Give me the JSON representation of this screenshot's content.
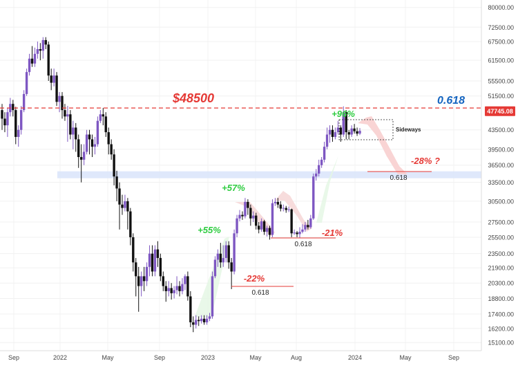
{
  "chart_data": {
    "type": "candlestick",
    "colors": {
      "up": "#7e57c2",
      "down": "#111111",
      "resistance_line": "#e53935",
      "support_band": "#dbe6fb",
      "gain_text": "#2ecc40",
      "loss_text": "#e53935",
      "fib_text": "#1565c0",
      "price_tag": "#e53935"
    },
    "y_axis": {
      "scale": "log",
      "ticks": [
        "80000.00",
        "72500.00",
        "67500.00",
        "61500.00",
        "55500.00",
        "51500.00",
        "47745.08",
        "43500.00",
        "39500.00",
        "36500.00",
        "33500.00",
        "30500.00",
        "27500.00",
        "25500.00",
        "23500.00",
        "21900.00",
        "20300.00",
        "18800.00",
        "17400.00",
        "16200.00",
        "15100.00"
      ],
      "range": [
        14500,
        83000
      ]
    },
    "x_axis": {
      "ticks": [
        "Sep",
        "2022",
        "May",
        "Sep",
        "2023",
        "May",
        "Aug",
        "2024",
        "May",
        "Sep"
      ]
    },
    "current_price": "47745.08",
    "resistance": {
      "label": "$48500",
      "price": 48500
    },
    "support_zone": {
      "low": 34200,
      "high": 35400
    },
    "annotations": {
      "fib_top": "0.618",
      "fib_1": "0.618",
      "fib_2": "0.618",
      "fib_3": "0.618",
      "gain_55": "+55%",
      "gain_57": "+57%",
      "gain_96": "+96%",
      "drop_22": "-22%",
      "drop_21": "-21%",
      "drop_28": "-28% ?",
      "sideways": "Sideways"
    },
    "series": [
      [
        48000,
        46000,
        49500,
        43500
      ],
      [
        46000,
        44500,
        47500,
        43000
      ],
      [
        44500,
        47500,
        48500,
        42000
      ],
      [
        47500,
        49500,
        51000,
        46500
      ],
      [
        49500,
        48000,
        50500,
        46500
      ],
      [
        48000,
        42000,
        48800,
        40500
      ],
      [
        42000,
        43500,
        44500,
        40000
      ],
      [
        43500,
        48000,
        49000,
        42500
      ],
      [
        48000,
        52000,
        53000,
        47500
      ],
      [
        52000,
        58000,
        59000,
        51500
      ],
      [
        58000,
        62000,
        63500,
        57000
      ],
      [
        62000,
        60500,
        66000,
        59500
      ],
      [
        60500,
        63500,
        65500,
        59500
      ],
      [
        63500,
        65000,
        67500,
        62000
      ],
      [
        65000,
        64500,
        67000,
        61500
      ],
      [
        64500,
        68000,
        69000,
        62000
      ],
      [
        68000,
        66500,
        69000,
        65000
      ],
      [
        66500,
        57000,
        67500,
        55500
      ],
      [
        57000,
        55000,
        59000,
        53000
      ],
      [
        55000,
        57000,
        59000,
        54000
      ],
      [
        57000,
        50000,
        58000,
        49000
      ],
      [
        50000,
        51500,
        52500,
        47500
      ],
      [
        51500,
        48000,
        52500,
        46000
      ],
      [
        48000,
        46500,
        49500,
        45500
      ],
      [
        46500,
        47000,
        49000,
        41000
      ],
      [
        47000,
        42500,
        48000,
        41500
      ],
      [
        42500,
        44000,
        45500,
        39500
      ],
      [
        44000,
        41500,
        45000,
        39000
      ],
      [
        41500,
        38000,
        42500,
        36000
      ],
      [
        38000,
        37500,
        40500,
        33500
      ],
      [
        37500,
        39000,
        40500,
        36500
      ],
      [
        39000,
        42500,
        43500,
        38500
      ],
      [
        42500,
        41500,
        43500,
        38500
      ],
      [
        41500,
        40000,
        42500,
        38000
      ],
      [
        40000,
        40500,
        42000,
        38500
      ],
      [
        40500,
        45500,
        46500,
        40000
      ],
      [
        45500,
        47000,
        48000,
        45000
      ],
      [
        47000,
        46500,
        48500,
        44500
      ],
      [
        46500,
        43000,
        47500,
        42000
      ],
      [
        43000,
        40500,
        44000,
        38500
      ],
      [
        40500,
        38500,
        41500,
        37500
      ],
      [
        38500,
        34500,
        39500,
        33000
      ],
      [
        34500,
        32500,
        35500,
        30500
      ],
      [
        32500,
        30000,
        33500,
        26500
      ],
      [
        30000,
        29500,
        31500,
        28500
      ],
      [
        29500,
        30500,
        31500,
        29000
      ],
      [
        30500,
        29000,
        31000,
        26500
      ],
      [
        29000,
        25500,
        29500,
        24500
      ],
      [
        25500,
        22500,
        26000,
        21500
      ],
      [
        22500,
        21000,
        23000,
        19000
      ],
      [
        21000,
        20000,
        22000,
        17600
      ],
      [
        20000,
        21000,
        21500,
        19000
      ],
      [
        21000,
        20500,
        22000,
        19500
      ],
      [
        20500,
        22000,
        22500,
        20000
      ],
      [
        22000,
        23500,
        24500,
        21000
      ],
      [
        23500,
        21500,
        24500,
        21000
      ],
      [
        21500,
        24000,
        24500,
        21000
      ],
      [
        24000,
        23000,
        25000,
        22000
      ],
      [
        23000,
        21000,
        23500,
        20500
      ],
      [
        21000,
        20000,
        21500,
        19500
      ],
      [
        20000,
        19500,
        20500,
        18500
      ],
      [
        19500,
        19800,
        20500,
        19000
      ],
      [
        19800,
        19300,
        20300,
        18700
      ],
      [
        19300,
        19600,
        20000,
        18800
      ],
      [
        19600,
        20000,
        21000,
        19200
      ],
      [
        20000,
        19500,
        20500,
        19000
      ],
      [
        19500,
        20200,
        20800,
        19200
      ],
      [
        20200,
        21000,
        21200,
        19600
      ],
      [
        21000,
        19000,
        21500,
        18600
      ],
      [
        19000,
        16700,
        19500,
        16300
      ],
      [
        16700,
        16500,
        17200,
        15900
      ],
      [
        16500,
        16900,
        17300,
        16200
      ],
      [
        16900,
        16800,
        17200,
        16400
      ],
      [
        16800,
        17000,
        17300,
        16600
      ],
      [
        17000,
        16700,
        17300,
        16500
      ],
      [
        16700,
        17000,
        17300,
        16500
      ],
      [
        17000,
        17200,
        17500,
        16800
      ],
      [
        17200,
        21000,
        21500,
        17000
      ],
      [
        21000,
        22800,
        23200,
        20800
      ],
      [
        22800,
        23500,
        24000,
        22000
      ],
      [
        23500,
        22500,
        24800,
        21900
      ],
      [
        22500,
        23000,
        24500,
        22000
      ],
      [
        23000,
        24500,
        25000,
        22500
      ],
      [
        24500,
        22500,
        25000,
        21800
      ],
      [
        22500,
        21500,
        23000,
        19700
      ],
      [
        21500,
        26000,
        26500,
        21200
      ],
      [
        26000,
        28000,
        28500,
        25500
      ],
      [
        28000,
        28500,
        29200,
        27600
      ],
      [
        28500,
        28300,
        29000,
        27800
      ],
      [
        28300,
        30400,
        31000,
        28000
      ],
      [
        30400,
        29500,
        30800,
        28500
      ],
      [
        29500,
        28000,
        30000,
        27000
      ],
      [
        28000,
        28400,
        29000,
        27500
      ],
      [
        28400,
        27000,
        28800,
        26500
      ],
      [
        27000,
        26500,
        27500,
        26000
      ],
      [
        26500,
        27600,
        28000,
        26200
      ],
      [
        27600,
        26200,
        27800,
        25800
      ],
      [
        26200,
        26700,
        27000,
        25600
      ],
      [
        26700,
        25800,
        27000,
        25200
      ],
      [
        25800,
        30200,
        30800,
        25500
      ],
      [
        30200,
        30400,
        31000,
        29800
      ],
      [
        30400,
        30000,
        31000,
        29500
      ],
      [
        30000,
        29400,
        30500,
        29000
      ],
      [
        29400,
        29500,
        30000,
        29000
      ],
      [
        29500,
        29200,
        29800,
        28800
      ],
      [
        29200,
        29300,
        29700,
        28900
      ],
      [
        29300,
        26000,
        29400,
        25500
      ],
      [
        26000,
        26100,
        26500,
        25800
      ],
      [
        26100,
        25900,
        26300,
        25500
      ],
      [
        25900,
        26200,
        26800,
        25400
      ],
      [
        26200,
        26500,
        27200,
        26000
      ],
      [
        26500,
        27100,
        27500,
        26200
      ],
      [
        27100,
        26800,
        27800,
        26500
      ],
      [
        26800,
        28000,
        28500,
        26600
      ],
      [
        28000,
        34500,
        35000,
        27800
      ],
      [
        34500,
        35000,
        35800,
        33800
      ],
      [
        35000,
        36500,
        37500,
        34500
      ],
      [
        36500,
        37500,
        38000,
        36000
      ],
      [
        37500,
        40000,
        41000,
        37000
      ],
      [
        40000,
        42500,
        44000,
        39500
      ],
      [
        42500,
        43500,
        44500,
        40800
      ],
      [
        43500,
        42000,
        44500,
        41000
      ],
      [
        42000,
        43000,
        44000,
        41500
      ],
      [
        43000,
        44000,
        45500,
        42500
      ],
      [
        44000,
        42500,
        44500,
        41000
      ],
      [
        42500,
        47500,
        48900,
        42000
      ],
      [
        47500,
        43000,
        48000,
        41500
      ],
      [
        43000,
        42500,
        43500,
        41500
      ],
      [
        42500,
        43800,
        44500,
        42000
      ],
      [
        43800,
        43200,
        44800,
        42700
      ],
      [
        43200,
        42700,
        44000,
        42200
      ],
      [
        42700,
        43300,
        43900,
        42400
      ]
    ]
  }
}
